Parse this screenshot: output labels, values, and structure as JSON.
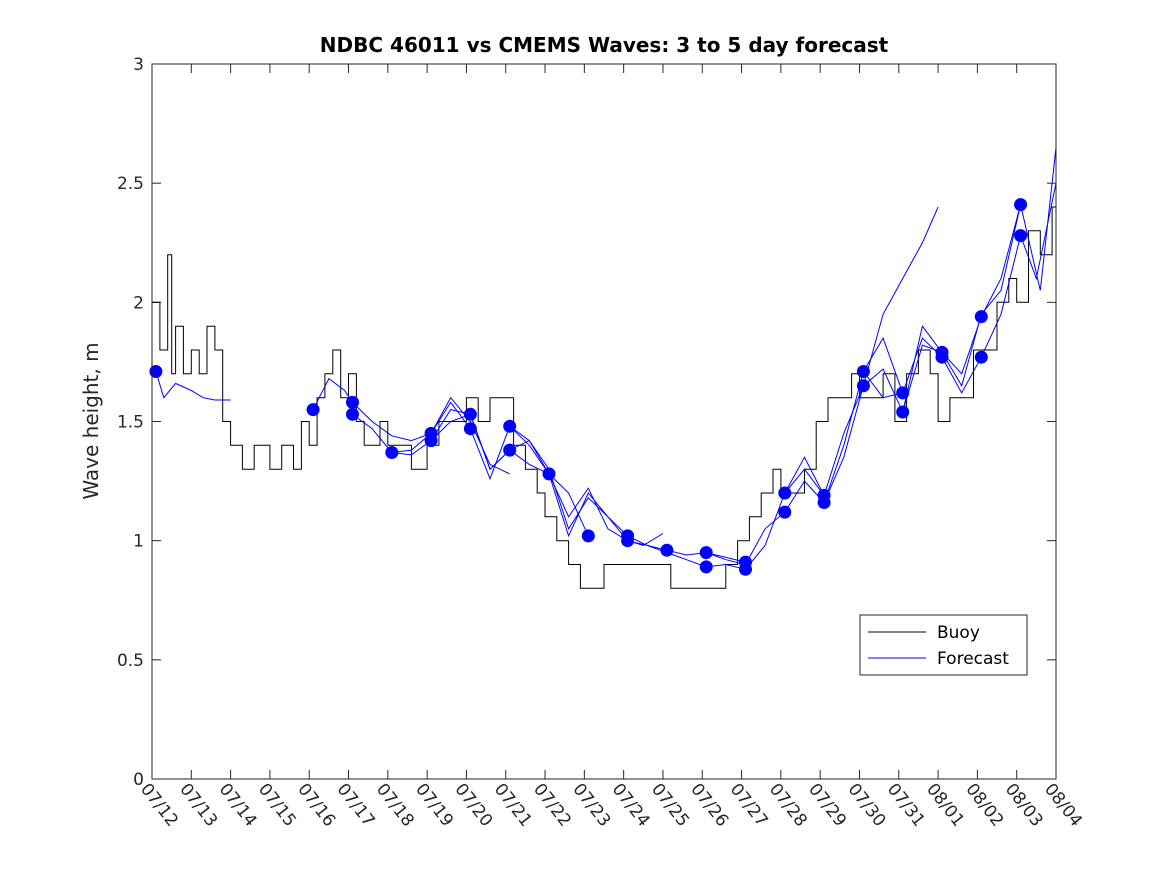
{
  "chart_data": {
    "type": "line",
    "title": "NDBC 46011 vs CMEMS Waves: 3 to 5 day forecast",
    "xlabel": "",
    "ylabel": "Wave height, m",
    "ylim": [
      0,
      3
    ],
    "yticks": [
      0,
      0.5,
      1,
      1.5,
      2,
      2.5,
      3
    ],
    "ytick_labels": [
      "0",
      "0.5",
      "1",
      "1.5",
      "2",
      "2.5",
      "3"
    ],
    "xlim_day": [
      0,
      23
    ],
    "xtick_labels": [
      "07/12",
      "07/13",
      "07/14",
      "07/15",
      "07/16",
      "07/17",
      "07/18",
      "07/19",
      "07/20",
      "07/21",
      "07/22",
      "07/23",
      "07/24",
      "07/25",
      "07/26",
      "07/27",
      "07/28",
      "07/29",
      "07/30",
      "07/31",
      "08/01",
      "08/02",
      "08/03",
      "08/04"
    ],
    "grid": false,
    "legend_position": "bottom-right",
    "colors": {
      "buoy": "#000000",
      "forecast": "#0000ff"
    },
    "series": [
      {
        "name": "Buoy",
        "style": "step",
        "x": [
          0.0,
          0.2,
          0.4,
          0.5,
          0.6,
          0.8,
          1.0,
          1.2,
          1.4,
          1.6,
          1.8,
          2.0,
          2.3,
          2.6,
          3.0,
          3.3,
          3.6,
          3.8,
          4.0,
          4.2,
          4.4,
          4.6,
          4.8,
          5.0,
          5.2,
          5.4,
          5.6,
          5.8,
          6.0,
          6.3,
          6.6,
          7.0,
          7.3,
          7.6,
          8.0,
          8.3,
          8.6,
          8.9,
          9.2,
          9.5,
          9.8,
          10.0,
          10.3,
          10.6,
          10.9,
          11.2,
          11.5,
          11.8,
          12.0,
          12.3,
          12.6,
          12.9,
          13.2,
          13.5,
          13.8,
          14.0,
          14.3,
          14.6,
          14.9,
          15.2,
          15.5,
          15.8,
          16.0,
          16.3,
          16.6,
          16.9,
          17.2,
          17.5,
          17.8,
          18.0,
          18.3,
          18.6,
          18.9,
          19.2,
          19.5,
          19.8,
          20.0,
          20.3,
          20.6,
          20.9,
          21.2,
          21.5,
          21.8,
          22.0,
          22.3,
          22.6,
          22.9,
          23.0
        ],
        "y": [
          2.0,
          1.8,
          2.2,
          1.7,
          1.9,
          1.7,
          1.8,
          1.7,
          1.9,
          1.8,
          1.5,
          1.4,
          1.3,
          1.4,
          1.3,
          1.4,
          1.3,
          1.5,
          1.4,
          1.6,
          1.7,
          1.8,
          1.6,
          1.7,
          1.5,
          1.4,
          1.4,
          1.5,
          1.4,
          1.4,
          1.3,
          1.4,
          1.5,
          1.5,
          1.6,
          1.5,
          1.6,
          1.6,
          1.4,
          1.3,
          1.2,
          1.1,
          1.0,
          0.9,
          0.8,
          0.8,
          0.9,
          0.9,
          0.9,
          0.9,
          0.9,
          0.9,
          0.8,
          0.8,
          0.8,
          0.8,
          0.8,
          0.9,
          1.0,
          1.1,
          1.2,
          1.3,
          1.2,
          1.2,
          1.3,
          1.5,
          1.6,
          1.6,
          1.7,
          1.6,
          1.6,
          1.7,
          1.5,
          1.7,
          1.8,
          1.7,
          1.5,
          1.6,
          1.6,
          1.8,
          1.8,
          2.0,
          2.1,
          2.0,
          2.3,
          2.2,
          2.4,
          2.5
        ]
      },
      {
        "name": "Forecast",
        "style": "line",
        "markers_x": [
          0.1,
          4.1,
          5.1,
          5.1,
          6.1,
          7.1,
          7.1,
          8.1,
          8.1,
          9.1,
          9.1,
          10.1,
          11.1,
          12.1,
          12.1,
          13.1,
          14.1,
          14.1,
          15.1,
          15.1,
          16.1,
          16.1,
          17.1,
          17.1,
          18.1,
          18.1,
          19.1,
          19.1,
          20.1,
          20.1,
          21.1,
          21.1,
          22.1,
          22.1
        ],
        "markers_y": [
          1.71,
          1.55,
          1.58,
          1.53,
          1.37,
          1.45,
          1.42,
          1.53,
          1.47,
          1.48,
          1.38,
          1.28,
          1.02,
          1.02,
          1.0,
          0.96,
          0.95,
          0.89,
          0.91,
          0.88,
          1.2,
          1.12,
          1.19,
          1.16,
          1.71,
          1.65,
          1.62,
          1.54,
          1.79,
          1.77,
          1.94,
          1.77,
          2.41,
          2.28
        ],
        "runs": [
          {
            "x": [
              0.1,
              0.3,
              0.6,
              1.0,
              1.3,
              1.6,
              2.0
            ],
            "y": [
              1.71,
              1.6,
              1.66,
              1.63,
              1.6,
              1.59,
              1.59
            ]
          },
          {
            "x": [
              4.1,
              4.5,
              4.9,
              5.1,
              5.6,
              6.1,
              6.6,
              7.1,
              7.6,
              8.1,
              8.6,
              9.1
            ],
            "y": [
              1.55,
              1.68,
              1.63,
              1.58,
              1.5,
              1.44,
              1.42,
              1.45,
              1.6,
              1.5,
              1.32,
              1.28
            ]
          },
          {
            "x": [
              5.1,
              5.6,
              6.1,
              6.6,
              7.1,
              7.6,
              8.1,
              8.6,
              9.1,
              9.6,
              10.1
            ],
            "y": [
              1.53,
              1.47,
              1.37,
              1.36,
              1.42,
              1.55,
              1.53,
              1.3,
              1.38,
              1.32,
              1.28
            ]
          },
          {
            "x": [
              6.1,
              6.6,
              7.1,
              7.6,
              8.1,
              8.6,
              9.1,
              9.6,
              10.1,
              10.6,
              11.1
            ],
            "y": [
              1.37,
              1.38,
              1.45,
              1.58,
              1.47,
              1.26,
              1.48,
              1.4,
              1.28,
              1.2,
              1.02
            ]
          },
          {
            "x": [
              7.1,
              7.6,
              8.1,
              8.6,
              9.1,
              9.6,
              10.1,
              10.6,
              11.1,
              11.6,
              12.1
            ],
            "y": [
              1.42,
              1.5,
              1.53,
              1.3,
              1.38,
              1.42,
              1.3,
              1.05,
              1.18,
              1.1,
              1.02
            ]
          },
          {
            "x": [
              9.1,
              9.6,
              10.1,
              10.6,
              11.1,
              11.6,
              12.1,
              12.5,
              13.0
            ],
            "y": [
              1.48,
              1.42,
              1.28,
              1.02,
              1.2,
              1.1,
              1.0,
              0.98,
              1.03
            ]
          },
          {
            "x": [
              10.1,
              10.6,
              11.1,
              11.6,
              12.1,
              12.6,
              13.1,
              13.6,
              14.1,
              14.6,
              15.1
            ],
            "y": [
              1.28,
              1.1,
              1.22,
              1.05,
              1.0,
              0.98,
              0.96,
              0.94,
              0.95,
              0.93,
              0.91
            ]
          },
          {
            "x": [
              12.1,
              12.6,
              13.1,
              13.6,
              14.1,
              14.6,
              15.1,
              15.6,
              16.1,
              16.6,
              17.1
            ],
            "y": [
              1.02,
              0.98,
              0.95,
              0.92,
              0.89,
              0.9,
              0.88,
              0.98,
              1.2,
              1.3,
              1.19
            ]
          },
          {
            "x": [
              14.1,
              14.6,
              15.1,
              15.6,
              16.1,
              16.6,
              17.1,
              17.6,
              18.1,
              18.6,
              19.1
            ],
            "y": [
              0.95,
              0.92,
              0.9,
              1.05,
              1.12,
              1.25,
              1.16,
              1.4,
              1.71,
              1.85,
              1.62
            ]
          },
          {
            "x": [
              16.1,
              16.6,
              17.1,
              17.6,
              18.1,
              18.6,
              19.1,
              19.6,
              20.0
            ],
            "y": [
              1.2,
              1.35,
              1.19,
              1.45,
              1.65,
              1.95,
              2.1,
              2.25,
              2.4
            ]
          },
          {
            "x": [
              17.1,
              17.6,
              18.1,
              18.6,
              19.1,
              19.6,
              20.1,
              20.6,
              21.1,
              21.6,
              22.1
            ],
            "y": [
              1.16,
              1.35,
              1.65,
              1.72,
              1.54,
              1.9,
              1.79,
              1.7,
              1.94,
              2.1,
              2.41
            ]
          },
          {
            "x": [
              18.1,
              18.6,
              19.1,
              19.6,
              20.1,
              20.6,
              21.1,
              21.6,
              22.1,
              22.5,
              23.0
            ],
            "y": [
              1.71,
              1.6,
              1.62,
              1.85,
              1.77,
              1.62,
              1.77,
              1.95,
              2.28,
              2.1,
              2.5
            ]
          },
          {
            "x": [
              19.1,
              19.6,
              20.1,
              20.6,
              21.1,
              21.6,
              22.1,
              22.6,
              23.0
            ],
            "y": [
              1.54,
              1.82,
              1.79,
              1.65,
              1.95,
              2.05,
              2.41,
              2.05,
              2.65
            ]
          }
        ]
      }
    ]
  },
  "legend": {
    "buoy_label": "Buoy",
    "forecast_label": "Forecast"
  }
}
